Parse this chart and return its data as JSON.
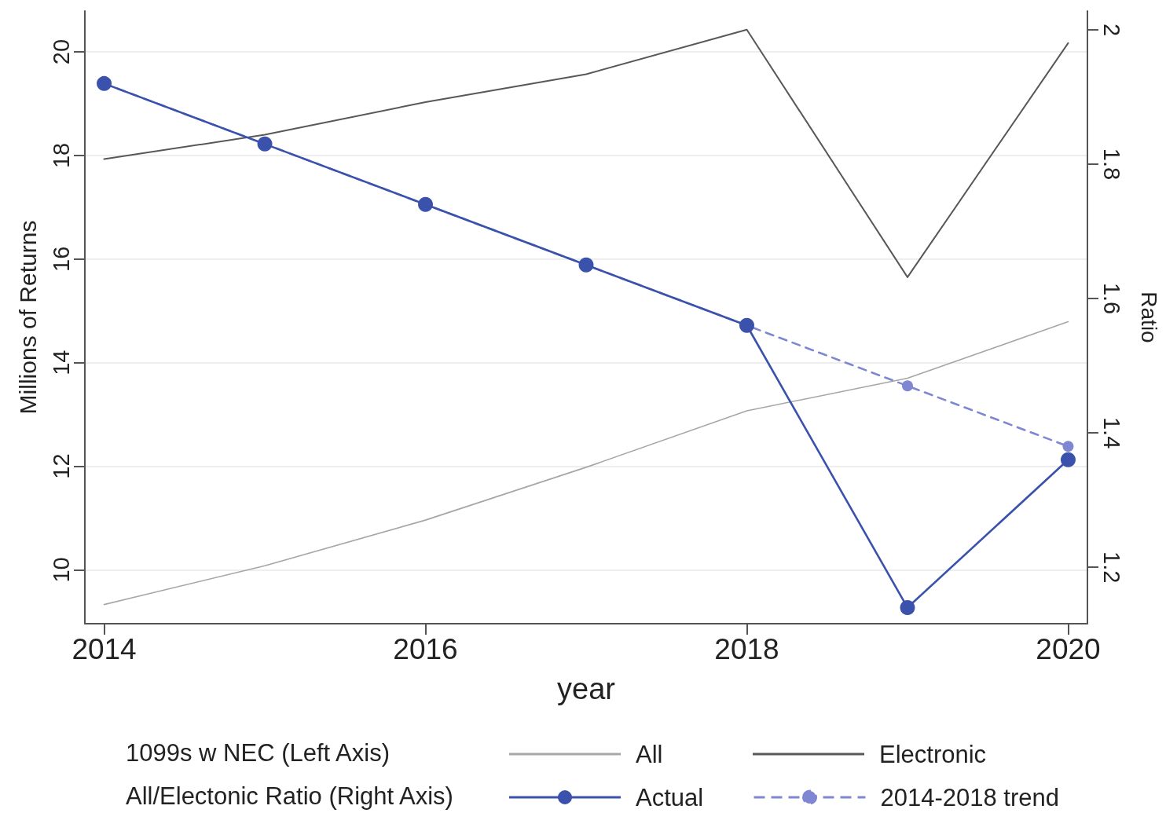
{
  "chart_data": {
    "type": "line",
    "xlabel": "year",
    "ylabel": "Millions of Returns",
    "y2label": "Ratio",
    "x": [
      2014,
      2015,
      2016,
      2017,
      2018,
      2019,
      2020
    ],
    "series": [
      {
        "name": "All",
        "color": "#a6a6a6",
        "values": [
          9.33,
          10.08,
          10.96,
          11.98,
          13.07,
          13.7,
          14.79
        ],
        "marker": "none"
      },
      {
        "name": "Electronic",
        "color": "#585858",
        "values": [
          17.93,
          18.4,
          19.03,
          19.57,
          20.43,
          15.65,
          20.17
        ],
        "marker": "none"
      },
      {
        "name": "Actual",
        "color": "#3b52ad",
        "axis": "y2",
        "values": [
          1.92,
          1.83,
          1.74,
          1.65,
          1.56,
          1.14,
          1.36
        ],
        "marker": "circle"
      },
      {
        "name": "2014-2018 trend",
        "color": "#7f87d2",
        "axis": "y2",
        "x": [
          2014,
          2015,
          2016,
          2017,
          2018,
          2019,
          2020
        ],
        "values": [
          1.92,
          1.83,
          1.74,
          1.65,
          1.56,
          1.47,
          1.38
        ],
        "marker": "circle",
        "line_style": "dashed"
      }
    ],
    "xlim": [
      2013.88,
      2020.12
    ],
    "xticks": [
      2014,
      2016,
      2018,
      2020
    ],
    "ylim": [
      8.96,
      20.79
    ],
    "yticks": [
      10,
      12,
      14,
      16,
      18,
      20
    ],
    "y2lim": [
      1.116,
      2.028
    ],
    "y2ticks": [
      1.2,
      1.4,
      1.6,
      1.8,
      2
    ],
    "grid": "y",
    "legend": "bottom",
    "annotations": [
      "1099s w NEC (Left Axis)",
      "All/Electonic Ratio (Right Axis)"
    ]
  }
}
